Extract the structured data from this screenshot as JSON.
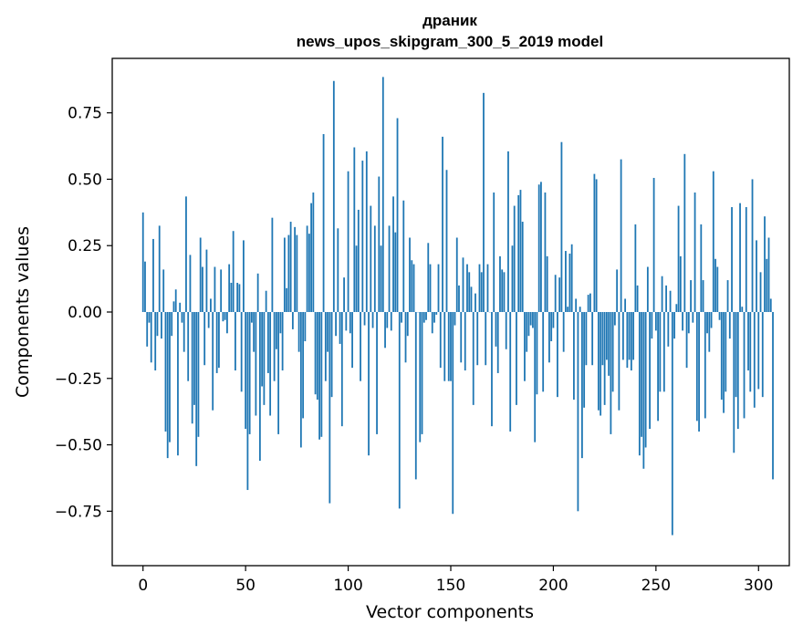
{
  "chart_data": {
    "type": "bar",
    "title": "драник",
    "subtitle": "news_upos_skipgram_300_5_2019 model",
    "xlabel": "Vector components",
    "ylabel": "Components values",
    "xlim": [
      -15,
      315
    ],
    "ylim": [
      -0.955,
      0.955
    ],
    "xticks": [
      0,
      50,
      100,
      150,
      200,
      250,
      300
    ],
    "yticks": [
      -0.75,
      -0.5,
      -0.25,
      0.0,
      0.25,
      0.5,
      0.75
    ],
    "xtick_labels": [
      "0",
      "50",
      "100",
      "150",
      "200",
      "250",
      "300"
    ],
    "ytick_labels": [
      "−0.75",
      "−0.50",
      "−0.25",
      "0.00",
      "0.25",
      "0.50",
      "0.75"
    ],
    "grid": false,
    "bar_color": "#1f77b4",
    "values": [
      0.375,
      0.19,
      -0.13,
      -0.04,
      -0.19,
      0.275,
      -0.22,
      -0.09,
      0.325,
      -0.1,
      0.16,
      -0.45,
      -0.55,
      -0.49,
      -0.09,
      0.04,
      0.085,
      -0.54,
      0.035,
      -0.04,
      -0.15,
      0.435,
      -0.26,
      0.215,
      -0.42,
      -0.35,
      -0.58,
      -0.47,
      0.28,
      0.17,
      -0.2,
      0.235,
      -0.06,
      0.05,
      -0.37,
      0.17,
      -0.23,
      -0.21,
      0.16,
      -0.035,
      -0.03,
      -0.08,
      0.18,
      0.11,
      0.305,
      -0.22,
      0.11,
      0.105,
      -0.3,
      0.27,
      -0.44,
      -0.67,
      -0.46,
      -0.04,
      -0.15,
      -0.39,
      0.145,
      -0.56,
      -0.28,
      -0.35,
      0.08,
      -0.23,
      -0.39,
      0.355,
      -0.26,
      -0.14,
      -0.46,
      -0.08,
      -0.22,
      0.28,
      0.09,
      0.29,
      0.34,
      -0.065,
      0.32,
      0.29,
      -0.15,
      -0.51,
      -0.4,
      -0.11,
      0.325,
      0.295,
      0.41,
      0.45,
      -0.31,
      -0.33,
      -0.48,
      -0.47,
      0.67,
      -0.26,
      -0.15,
      -0.72,
      -0.32,
      0.87,
      -0.09,
      0.315,
      -0.12,
      -0.43,
      0.13,
      -0.07,
      0.53,
      -0.08,
      -0.21,
      0.62,
      0.25,
      0.385,
      -0.26,
      0.57,
      -0.05,
      0.605,
      -0.54,
      0.4,
      -0.06,
      0.325,
      -0.46,
      0.51,
      0.25,
      0.885,
      -0.135,
      -0.06,
      0.325,
      -0.07,
      0.435,
      0.3,
      0.73,
      -0.74,
      -0.04,
      0.42,
      -0.19,
      -0.09,
      0.28,
      0.195,
      0.18,
      -0.63,
      0.0,
      -0.49,
      -0.46,
      -0.04,
      -0.03,
      0.26,
      0.18,
      -0.08,
      -0.04,
      -0.01,
      0.18,
      -0.21,
      0.66,
      -0.26,
      0.535,
      -0.26,
      -0.26,
      -0.76,
      -0.05,
      0.28,
      0.1,
      -0.19,
      0.205,
      -0.22,
      0.18,
      0.15,
      0.095,
      -0.35,
      0.07,
      -0.2,
      0.18,
      0.15,
      0.825,
      -0.2,
      0.18,
      0.0,
      -0.43,
      0.45,
      -0.13,
      -0.23,
      0.21,
      0.16,
      0.15,
      -0.14,
      0.605,
      -0.45,
      0.25,
      0.4,
      -0.35,
      0.44,
      0.46,
      0.34,
      -0.26,
      -0.15,
      -0.09,
      -0.05,
      -0.06,
      -0.49,
      -0.31,
      0.48,
      0.49,
      -0.3,
      0.45,
      0.21,
      -0.19,
      -0.11,
      -0.06,
      0.14,
      -0.32,
      0.13,
      0.64,
      -0.15,
      0.23,
      0.02,
      0.22,
      0.255,
      -0.33,
      0.05,
      -0.75,
      0.02,
      -0.55,
      -0.36,
      -0.2,
      0.065,
      0.07,
      -0.2,
      0.52,
      0.5,
      -0.37,
      -0.39,
      -0.2,
      -0.35,
      -0.18,
      -0.24,
      -0.46,
      -0.3,
      -0.05,
      0.16,
      -0.37,
      0.575,
      -0.18,
      0.05,
      -0.21,
      -0.18,
      -0.22,
      -0.18,
      0.33,
      0.1,
      -0.54,
      -0.47,
      -0.59,
      -0.51,
      0.17,
      -0.44,
      -0.1,
      0.505,
      -0.07,
      -0.41,
      -0.3,
      0.135,
      -0.3,
      0.1,
      -0.13,
      0.08,
      -0.84,
      -0.1,
      0.03,
      0.4,
      0.21,
      -0.07,
      0.595,
      -0.21,
      -0.08,
      0.12,
      -0.04,
      0.45,
      -0.41,
      -0.45,
      0.33,
      0.12,
      -0.4,
      -0.08,
      -0.15,
      -0.06,
      0.53,
      0.2,
      0.17,
      -0.03,
      -0.33,
      -0.38,
      -0.3,
      0.12,
      -0.1,
      0.395,
      -0.53,
      -0.32,
      -0.44,
      0.41,
      0.02,
      -0.4,
      0.395,
      -0.22,
      -0.3,
      0.5,
      -0.36,
      0.27,
      -0.29,
      0.15,
      -0.32,
      0.36,
      0.2,
      0.28,
      0.05,
      -0.63
    ]
  }
}
